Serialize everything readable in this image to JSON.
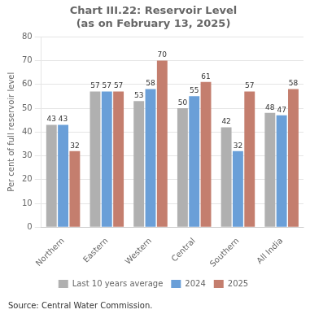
{
  "chart_data": {
    "type": "bar",
    "title": "Chart III.22: Reservoir Level\n(as on February 13, 2025)",
    "categories": [
      "Northern",
      "Eastern",
      "Western",
      "Central",
      "Southern",
      "All India"
    ],
    "series": [
      {
        "name": "Last 10 years average",
        "color": "#b0b0b0",
        "values": [
          43,
          57,
          53,
          50,
          42,
          48
        ]
      },
      {
        "name": "2024",
        "color": "#6a9fd8",
        "values": [
          43,
          57,
          58,
          55,
          32,
          47
        ]
      },
      {
        "name": "2025",
        "color": "#c47e6e",
        "values": [
          32,
          57,
          70,
          61,
          57,
          58
        ]
      }
    ],
    "ylabel": "Per cent of full reservoir level",
    "ylim": [
      0,
      80
    ],
    "yticks": [
      0,
      10,
      20,
      30,
      40,
      50,
      60,
      70,
      80
    ],
    "grid": true,
    "legend": "bottom",
    "data_labels": true,
    "annotations": [
      "Source: Central Water Commission."
    ]
  }
}
